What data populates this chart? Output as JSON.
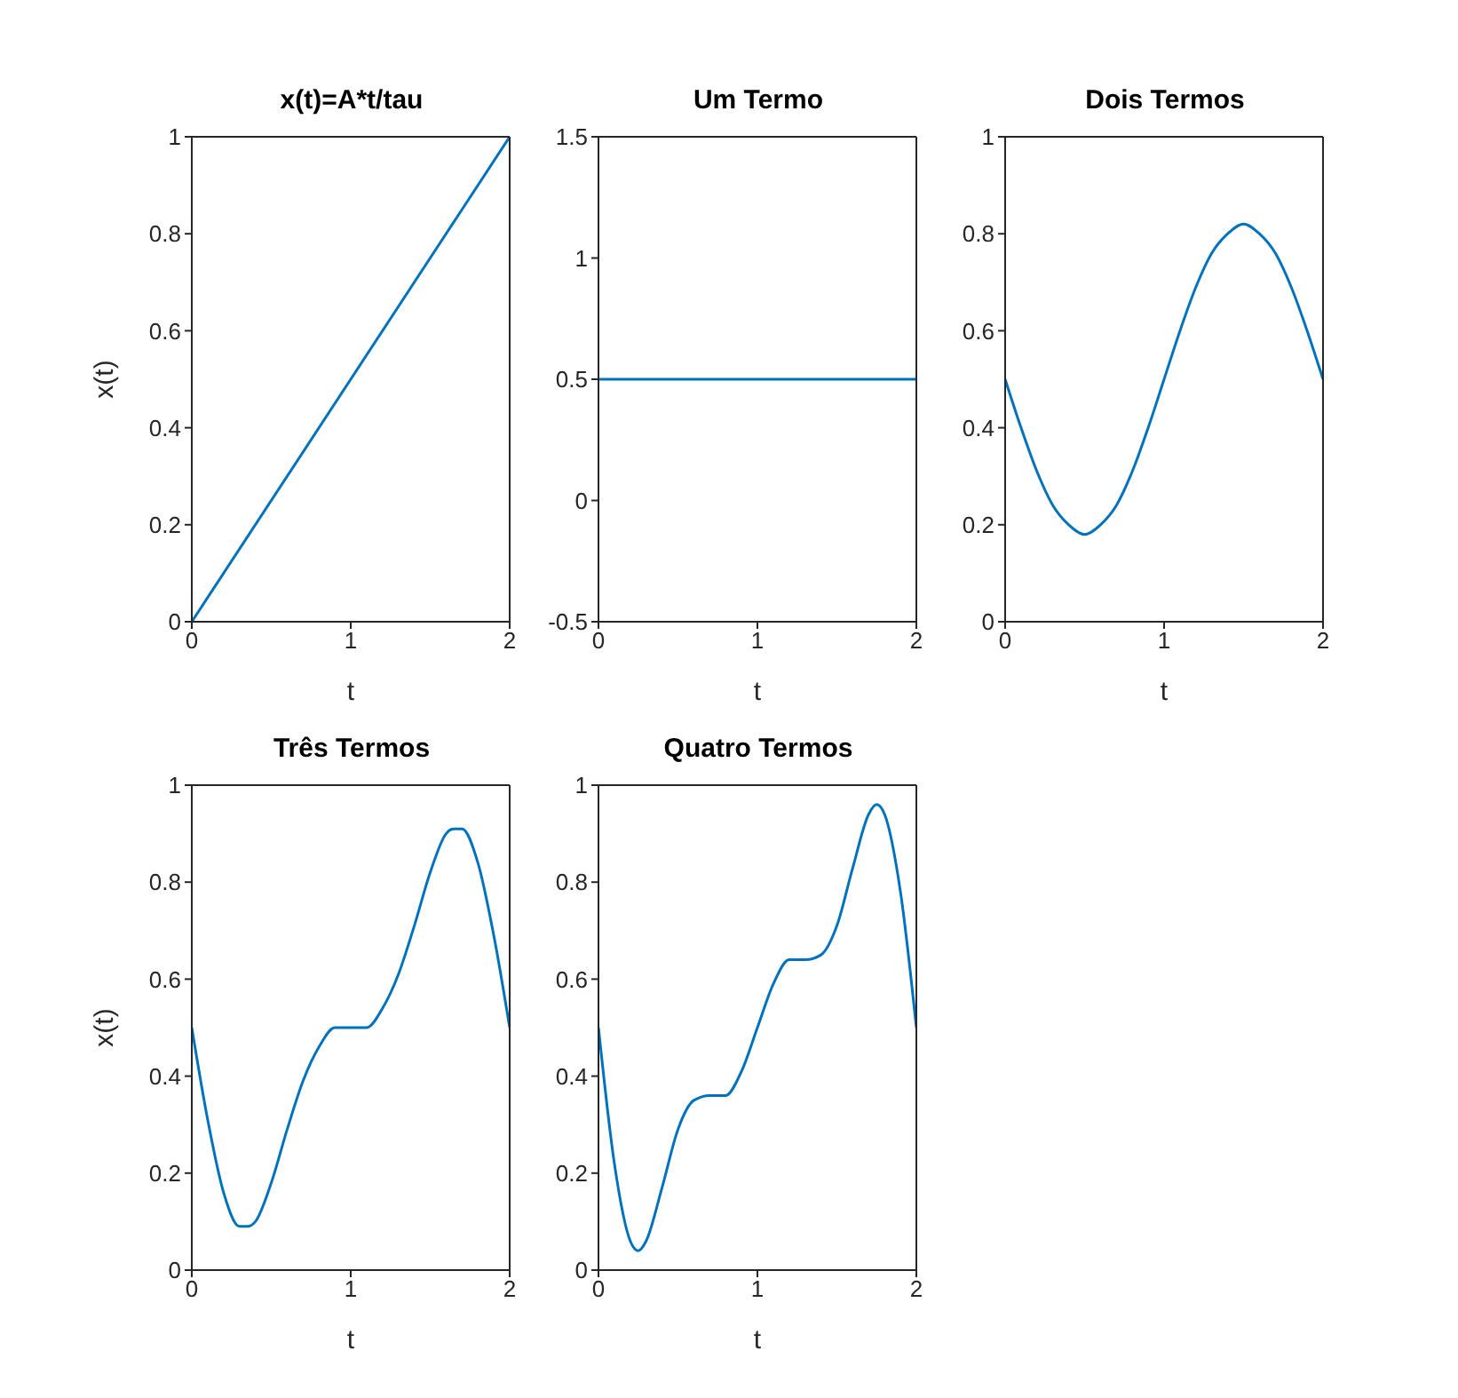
{
  "chart_data": [
    {
      "type": "line",
      "title": "x(t)=A*t/tau",
      "xlabel": "t",
      "ylabel": "x(t)",
      "x": [
        0,
        2
      ],
      "values": [
        0,
        1
      ],
      "color": "#0072bd",
      "xlim": [
        0,
        2
      ],
      "xticks": [
        0,
        1,
        2
      ],
      "ylim": [
        0,
        1
      ],
      "yticks": [
        0,
        0.2,
        0.4,
        0.6,
        0.8,
        1
      ],
      "grid": false
    },
    {
      "type": "line",
      "title": "Um Termo",
      "xlabel": "t",
      "x": [
        0,
        2
      ],
      "values": [
        0.5,
        0.5
      ],
      "color": "#0072bd",
      "xlim": [
        0,
        2
      ],
      "xticks": [
        0,
        1,
        2
      ],
      "ylim": [
        -0.5,
        1.5
      ],
      "yticks": [
        -0.5,
        0,
        0.5,
        1,
        1.5
      ],
      "grid": false
    },
    {
      "type": "line",
      "title": "Dois Termos",
      "xlabel": "t",
      "x": [
        0,
        0.1,
        0.2,
        0.3,
        0.4,
        0.5,
        0.6,
        0.7,
        0.8,
        0.9,
        1,
        1.1,
        1.2,
        1.3,
        1.4,
        1.5,
        1.6,
        1.7,
        1.8,
        1.9,
        2
      ],
      "values": [
        0.5,
        0.4,
        0.31,
        0.24,
        0.2,
        0.18,
        0.2,
        0.24,
        0.31,
        0.4,
        0.5,
        0.6,
        0.69,
        0.76,
        0.8,
        0.82,
        0.8,
        0.76,
        0.69,
        0.6,
        0.5
      ],
      "color": "#0072bd",
      "xlim": [
        0,
        2
      ],
      "xticks": [
        0,
        1,
        2
      ],
      "ylim": [
        0,
        1
      ],
      "yticks": [
        0,
        0.2,
        0.4,
        0.6,
        0.8,
        1
      ],
      "grid": false
    },
    {
      "type": "line",
      "title": "Três Termos",
      "xlabel": "t",
      "ylabel": "x(t)",
      "x": [
        0,
        0.1,
        0.2,
        0.3,
        0.35,
        0.4,
        0.5,
        0.6,
        0.7,
        0.8,
        0.9,
        1,
        1.1,
        1.2,
        1.3,
        1.4,
        1.5,
        1.6,
        1.65,
        1.7,
        1.8,
        1.9,
        2
      ],
      "values": [
        0.5,
        0.31,
        0.16,
        0.09,
        0.09,
        0.1,
        0.18,
        0.29,
        0.39,
        0.46,
        0.5,
        0.5,
        0.5,
        0.54,
        0.61,
        0.71,
        0.82,
        0.9,
        0.91,
        0.91,
        0.84,
        0.69,
        0.5
      ],
      "color": "#0072bd",
      "xlim": [
        0,
        2
      ],
      "xticks": [
        0,
        1,
        2
      ],
      "ylim": [
        0,
        1
      ],
      "yticks": [
        0,
        0.2,
        0.4,
        0.6,
        0.8,
        1
      ],
      "grid": false
    },
    {
      "type": "line",
      "title": "Quatro Termos",
      "xlabel": "t",
      "x": [
        0,
        0.1,
        0.2,
        0.25,
        0.3,
        0.4,
        0.5,
        0.6,
        0.7,
        0.8,
        0.9,
        1,
        1.1,
        1.2,
        1.3,
        1.4,
        1.5,
        1.6,
        1.7,
        1.75,
        1.8,
        1.9,
        2
      ],
      "values": [
        0.5,
        0.22,
        0.06,
        0.04,
        0.06,
        0.17,
        0.29,
        0.35,
        0.36,
        0.36,
        0.41,
        0.5,
        0.59,
        0.64,
        0.64,
        0.65,
        0.71,
        0.83,
        0.94,
        0.96,
        0.94,
        0.78,
        0.5
      ],
      "color": "#0072bd",
      "xlim": [
        0,
        2
      ],
      "xticks": [
        0,
        1,
        2
      ],
      "ylim": [
        0,
        1
      ],
      "yticks": [
        0,
        0.2,
        0.4,
        0.6,
        0.8,
        1
      ],
      "grid": false
    }
  ]
}
